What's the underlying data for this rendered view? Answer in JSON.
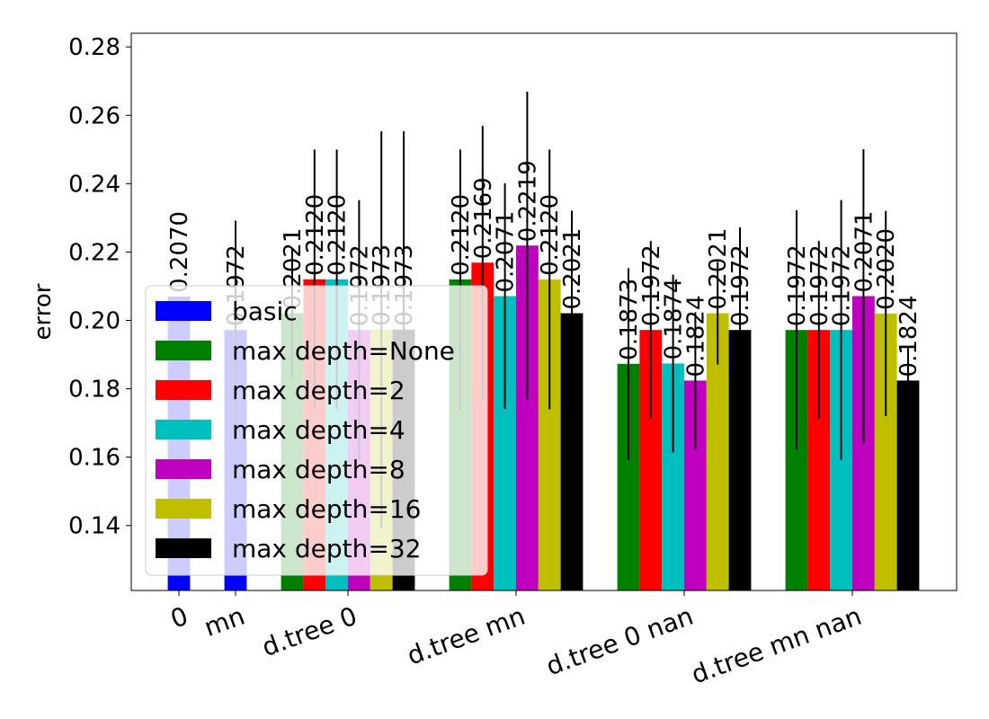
{
  "chart_data": {
    "type": "bar",
    "title": "",
    "xlabel": "",
    "ylabel": "error",
    "ylim": [
      0.121,
      0.284
    ],
    "yticks": [
      "0.14",
      "0.16",
      "0.18",
      "0.20",
      "0.22",
      "0.24",
      "0.26",
      "0.28"
    ],
    "categories": [
      "0",
      "mn",
      "d.tree 0",
      "d.tree mn",
      "d.tree 0 nan",
      "d.tree mn nan"
    ],
    "legend_position": "lower-left",
    "series": [
      {
        "name": "basic",
        "color": "#0000ff",
        "values": [
          0.207,
          0.1972,
          null,
          null,
          null,
          null
        ],
        "labels": [
          "0.2070",
          "0.1972",
          "",
          "",
          "",
          ""
        ],
        "errors": [
          null,
          0.032,
          null,
          null,
          null,
          null
        ]
      },
      {
        "name": "max depth=None",
        "color": "#008000",
        "values": [
          null,
          null,
          0.2021,
          0.212,
          0.1873,
          0.1972
        ],
        "labels": [
          "",
          "",
          "0.2021",
          "0.2120",
          "0.1873",
          "0.1972"
        ],
        "errors": [
          null,
          null,
          0.019,
          0.038,
          0.028,
          0.035
        ]
      },
      {
        "name": "max depth=2",
        "color": "#ff0000",
        "values": [
          null,
          null,
          0.212,
          0.2169,
          0.1972,
          0.1972
        ],
        "labels": [
          "",
          "",
          "0.2120",
          "0.2169",
          "0.1972",
          "0.1972"
        ],
        "errors": [
          null,
          null,
          0.038,
          0.04,
          0.026,
          0.026
        ]
      },
      {
        "name": "max depth=4",
        "color": "#00bfbf",
        "values": [
          null,
          null,
          0.212,
          0.2071,
          0.1874,
          0.1972
        ],
        "labels": [
          "",
          "",
          "0.2120",
          "0.2071",
          "0.1874",
          "0.1972"
        ],
        "errors": [
          null,
          null,
          0.038,
          0.033,
          0.026,
          0.038
        ]
      },
      {
        "name": "max depth=8",
        "color": "#bf00bf",
        "values": [
          null,
          null,
          0.1972,
          0.2219,
          0.1824,
          0.2071
        ],
        "labels": [
          "",
          "",
          "0.1972",
          "0.2219",
          "0.1824",
          "0.2071"
        ],
        "errors": [
          null,
          null,
          0.038,
          0.045,
          0.02,
          0.043
        ]
      },
      {
        "name": "max depth=16",
        "color": "#bfbf00",
        "values": [
          null,
          null,
          0.1973,
          0.212,
          0.2021,
          0.202
        ],
        "labels": [
          "",
          "",
          "0.1973",
          "0.2120",
          "0.2021",
          "0.2020"
        ],
        "errors": [
          null,
          null,
          0.058,
          0.038,
          0.015,
          0.03
        ]
      },
      {
        "name": "max depth=32",
        "color": "#000000",
        "values": [
          null,
          null,
          0.1973,
          0.2021,
          0.1972,
          0.1824
        ],
        "labels": [
          "",
          "",
          "0.1973",
          "0.2021",
          "0.1972",
          "0.1824"
        ],
        "errors": [
          null,
          null,
          0.058,
          0.03,
          0.03,
          0.01
        ]
      }
    ]
  }
}
